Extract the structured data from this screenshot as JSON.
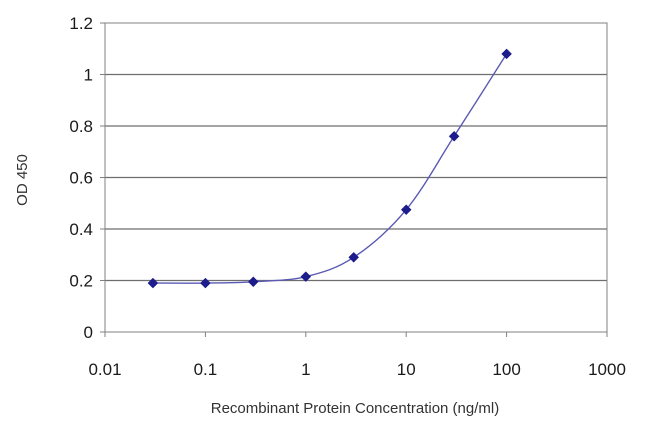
{
  "chart_data": {
    "type": "line",
    "title": "",
    "xlabel": "Recombinant Protein Concentration (ng/ml)",
    "ylabel": "OD 450",
    "xscale": "log",
    "xlim": [
      0.01,
      1000
    ],
    "ylim": [
      0,
      1.2
    ],
    "x_ticks": [
      0.01,
      0.1,
      1,
      10,
      100,
      1000
    ],
    "x_tick_labels": [
      "0.01",
      "0.1",
      "1",
      "10",
      "100",
      "1000"
    ],
    "y_ticks": [
      0,
      0.2,
      0.4,
      0.6,
      0.8,
      1,
      1.2
    ],
    "y_tick_labels": [
      "0",
      "0.2",
      "0.4",
      "0.6",
      "0.8",
      "1",
      "1.2"
    ],
    "grid": "horizontal",
    "legend": "none",
    "series": [
      {
        "color": "#1c1c8c",
        "marker": "diamond",
        "x": [
          0.03,
          0.1,
          0.3,
          1,
          3,
          10,
          30,
          100
        ],
        "y": [
          0.19,
          0.19,
          0.195,
          0.215,
          0.29,
          0.475,
          0.76,
          1.08
        ]
      }
    ]
  }
}
